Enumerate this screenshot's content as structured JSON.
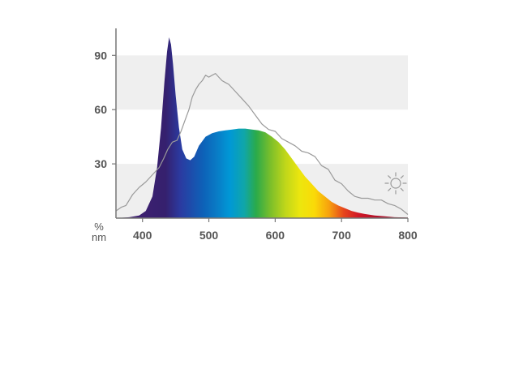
{
  "chart_data": {
    "type": "area",
    "title": "",
    "xlabel": "nm",
    "ylabel": "%",
    "xlim": [
      360,
      800
    ],
    "ylim": [
      0,
      100
    ],
    "grid": "alternating horizontal bands",
    "xticks": [
      400,
      500,
      600,
      700,
      800
    ],
    "yticks": [
      30,
      60,
      90
    ],
    "series": [
      {
        "fill": "visible spectrum gradient",
        "x": [
          360,
          380,
          395,
          405,
          415,
          422,
          428,
          433,
          437,
          440,
          443,
          446,
          450,
          455,
          460,
          466,
          472,
          478,
          485,
          495,
          505,
          515,
          525,
          535,
          545,
          555,
          565,
          575,
          585,
          595,
          605,
          615,
          625,
          635,
          645,
          655,
          665,
          675,
          685,
          695,
          705,
          715,
          725,
          735,
          750,
          765,
          780,
          800
        ],
        "values": [
          0,
          0.5,
          1.5,
          4,
          12,
          28,
          50,
          75,
          92,
          100,
          96,
          85,
          68,
          50,
          38,
          33,
          32,
          34,
          40,
          45,
          47,
          48,
          48.5,
          49,
          49.5,
          49.5,
          49,
          48.5,
          47.5,
          45,
          42,
          38,
          33,
          28,
          23,
          19,
          15,
          12,
          9,
          7,
          5.5,
          4,
          3,
          2.3,
          1.5,
          1,
          0.5,
          0.3
        ]
      },
      {
        "stroke": "#9a9a9a",
        "x": [
          360,
          368,
          375,
          385,
          395,
          405,
          415,
          425,
          432,
          438,
          445,
          452,
          458,
          465,
          470,
          475,
          480,
          485,
          490,
          495,
          500,
          505,
          510,
          515,
          520,
          525,
          530,
          540,
          550,
          560,
          570,
          580,
          590,
          600,
          610,
          620,
          630,
          640,
          650,
          660,
          670,
          680,
          690,
          700,
          710,
          720,
          730,
          740,
          750,
          760,
          770,
          780,
          790,
          800
        ],
        "values": [
          4,
          6,
          7,
          13,
          17,
          20,
          24,
          28,
          33,
          38,
          42,
          43,
          48,
          55,
          60,
          67,
          71,
          74,
          76,
          79,
          78,
          79,
          80,
          78,
          76,
          75,
          74,
          70,
          66,
          62,
          57,
          52,
          49,
          48,
          44,
          42,
          40,
          37,
          36,
          34,
          29,
          27,
          21,
          19,
          15,
          12,
          11,
          11,
          10,
          10,
          8,
          7,
          5,
          2
        ]
      }
    ]
  },
  "icons": {
    "sun": "sun-icon"
  }
}
